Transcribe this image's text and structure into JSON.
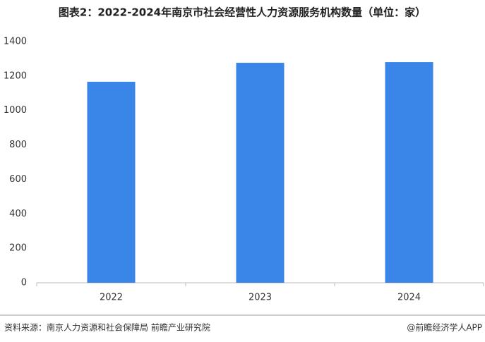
{
  "chart_data": {
    "type": "bar",
    "title": "图表2：2022-2024年南京市社会经营性人力资源服务机构数量（单位：家）",
    "categories": [
      "2022",
      "2023",
      "2024"
    ],
    "values": [
      1167,
      1277,
      1281
    ],
    "color": "#3a86e8",
    "ylim": [
      0,
      1400
    ],
    "yticks": [
      0,
      200,
      400,
      600,
      800,
      1000,
      1200,
      1400
    ],
    "grid": false,
    "source": "资料来源：南京人力资源和社会保障局 前瞻产业研究院",
    "credit": "@前瞻经济学人APP"
  }
}
